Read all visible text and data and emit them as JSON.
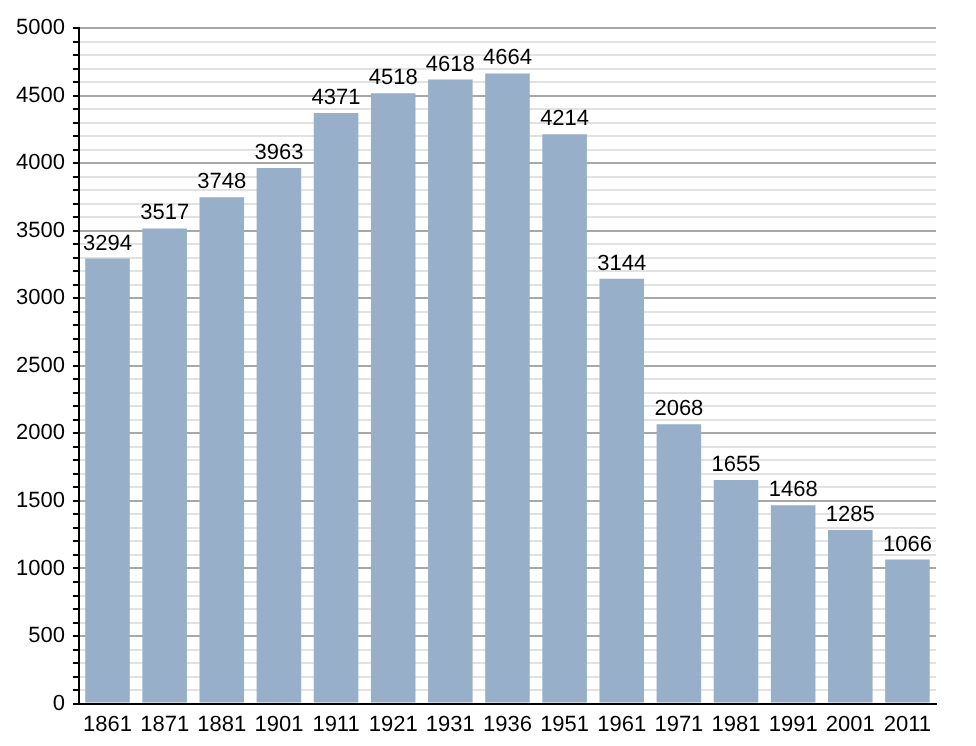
{
  "chart_data": {
    "type": "bar",
    "categories": [
      "1861",
      "1871",
      "1881",
      "1901",
      "1911",
      "1921",
      "1931",
      "1936",
      "1951",
      "1961",
      "1971",
      "1981",
      "1991",
      "2001",
      "2011"
    ],
    "values": [
      3294,
      3517,
      3748,
      3963,
      4371,
      4518,
      4618,
      4664,
      4214,
      3144,
      2068,
      1655,
      1468,
      1285,
      1066
    ],
    "color": "#97afc8",
    "data_labels": true,
    "grid": "y",
    "legend": false,
    "ylim": [
      0,
      5000
    ],
    "yticks": [
      0,
      {
        "value": 100,
        "label": null
      },
      {
        "value": 200,
        "label": null
      },
      {
        "value": 300,
        "label": null
      },
      {
        "value": 400,
        "label": null
      },
      500,
      {
        "value": 600,
        "label": null
      },
      {
        "value": 700,
        "label": null
      },
      {
        "value": 800,
        "label": null
      },
      {
        "value": 900,
        "label": null
      },
      1000,
      {
        "value": 1100,
        "label": null
      },
      {
        "value": 1200,
        "label": null
      },
      {
        "value": 1300,
        "label": null
      },
      {
        "value": 1400,
        "label": null
      },
      1500,
      {
        "value": 1600,
        "label": null
      },
      {
        "value": 1700,
        "label": null
      },
      {
        "value": 1800,
        "label": null
      },
      {
        "value": 1900,
        "label": null
      },
      2000,
      {
        "value": 2100,
        "label": null
      },
      {
        "value": 2200,
        "label": null
      },
      {
        "value": 2300,
        "label": null
      },
      {
        "value": 2400,
        "label": null
      },
      2500,
      {
        "value": 2600,
        "label": null
      },
      {
        "value": 2700,
        "label": null
      },
      {
        "value": 2800,
        "label": null
      },
      {
        "value": 2900,
        "label": null
      },
      3000,
      {
        "value": 3100,
        "label": null
      },
      {
        "value": 3200,
        "label": null
      },
      {
        "value": 3300,
        "label": null
      },
      {
        "value": 3400,
        "label": null
      },
      3500,
      {
        "value": 3600,
        "label": null
      },
      {
        "value": 3700,
        "label": null
      },
      {
        "value": 3800,
        "label": null
      },
      {
        "value": 3900,
        "label": null
      },
      4000,
      {
        "value": 4100,
        "label": null
      },
      {
        "value": 4200,
        "label": null
      },
      {
        "value": 4300,
        "label": null
      },
      {
        "value": 4400,
        "label": null
      },
      4500,
      {
        "value": 4600,
        "label": null
      },
      {
        "value": 4700,
        "label": null
      },
      {
        "value": 4800,
        "label": null
      },
      {
        "value": 4900,
        "label": null
      },
      5000
    ]
  }
}
